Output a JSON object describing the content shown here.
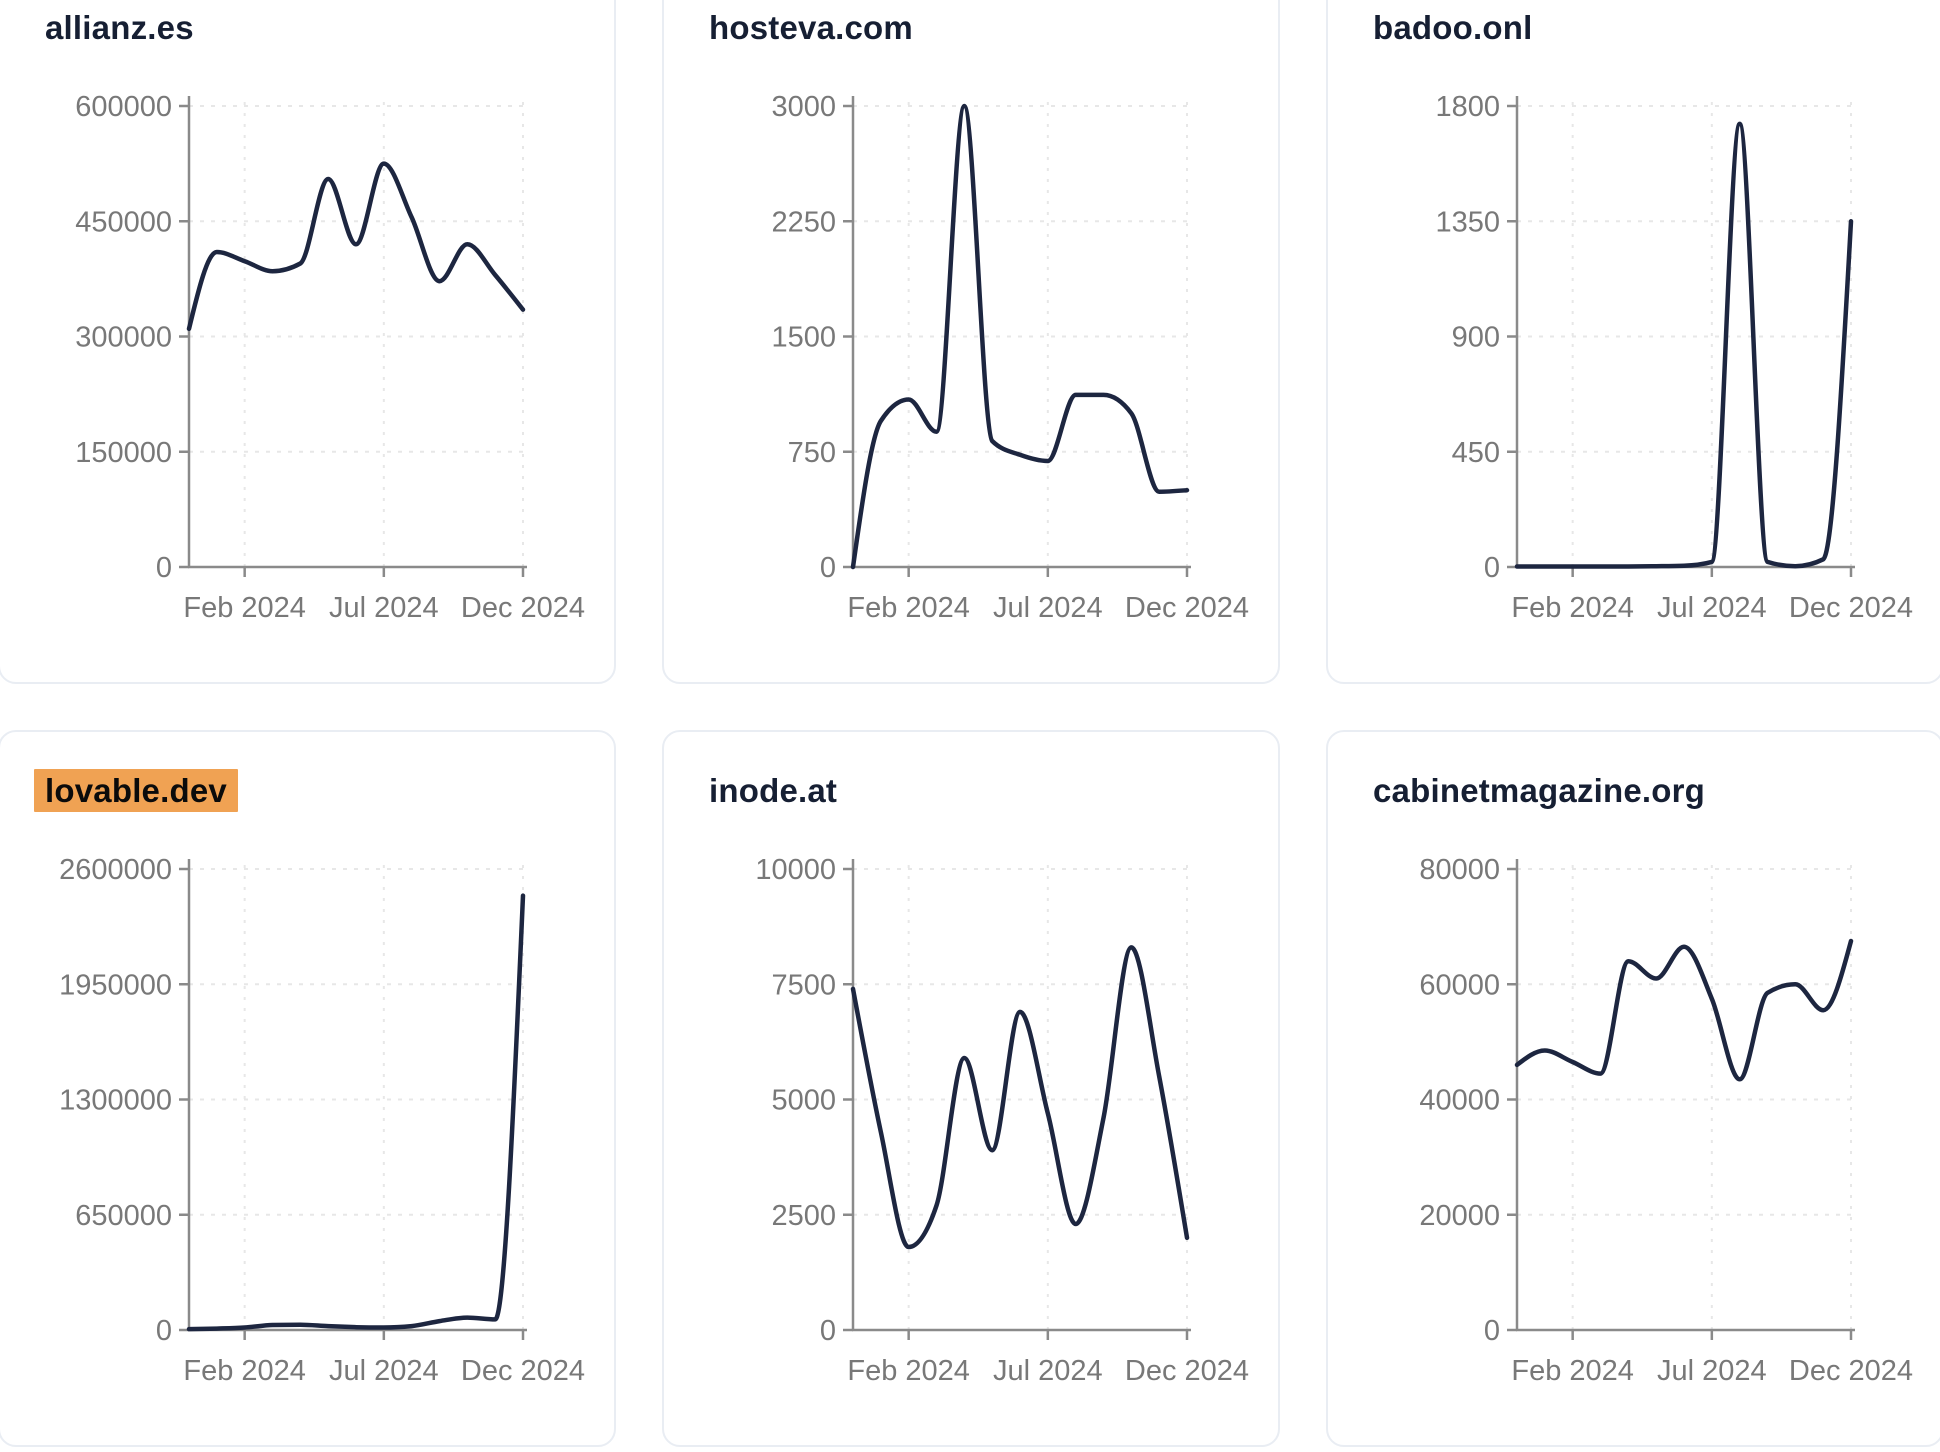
{
  "style": {
    "line_color": "#1d2640",
    "title_color": "#161f33",
    "highlight_color": "#f0a253",
    "axis_color": "#8a8a8a",
    "grid_color": "#e7e7e7",
    "tick_label_color": "#787878",
    "card_border_color": "#e9edf3",
    "background": "#ffffff"
  },
  "x_axis": {
    "tick_labels": [
      "Feb 2024",
      "Jul 2024",
      "Dec 2024"
    ]
  },
  "chart_data": [
    {
      "type": "line",
      "title": "allianz.es",
      "title_highlighted": false,
      "x": [
        "Dec 2023",
        "Jan 2024",
        "Feb 2024",
        "Mar 2024",
        "Apr 2024",
        "May 2024",
        "Jun 2024",
        "Jul 2024",
        "Aug 2024",
        "Sep 2024",
        "Oct 2024",
        "Nov 2024",
        "Dec 2024"
      ],
      "values": [
        310000,
        410000,
        398000,
        385000,
        395000,
        505000,
        420000,
        525000,
        455000,
        372000,
        420000,
        380000,
        335000
      ],
      "ylim": [
        0,
        600000
      ],
      "yticks": [
        0,
        150000,
        300000,
        450000,
        600000
      ],
      "y_tick_labels": [
        "0",
        "150000",
        "300000",
        "450000",
        "600000"
      ],
      "x_tick_labels": [
        "Feb 2024",
        "Jul 2024",
        "Dec 2024"
      ],
      "grid": true,
      "legend": "none"
    },
    {
      "type": "line",
      "title": "hosteva.com",
      "title_highlighted": false,
      "x": [
        "Dec 2023",
        "Jan 2024",
        "Feb 2024",
        "Mar 2024",
        "Apr 2024",
        "May 2024",
        "Jun 2024",
        "Jul 2024",
        "Aug 2024",
        "Sep 2024",
        "Oct 2024",
        "Nov 2024",
        "Dec 2024"
      ],
      "values": [
        0,
        950,
        1090,
        880,
        3000,
        820,
        730,
        690,
        1120,
        1120,
        1000,
        490,
        500
      ],
      "ylim": [
        0,
        3000
      ],
      "yticks": [
        0,
        750,
        1500,
        2250,
        3000
      ],
      "y_tick_labels": [
        "0",
        "750",
        "1500",
        "2250",
        "3000"
      ],
      "x_tick_labels": [
        "Feb 2024",
        "Jul 2024",
        "Dec 2024"
      ],
      "grid": true,
      "legend": "none"
    },
    {
      "type": "line",
      "title": "badoo.onl",
      "title_highlighted": false,
      "x": [
        "Dec 2023",
        "Jan 2024",
        "Feb 2024",
        "Mar 2024",
        "Apr 2024",
        "May 2024",
        "Jun 2024",
        "Jul 2024",
        "Aug 2024",
        "Sep 2024",
        "Oct 2024",
        "Nov 2024",
        "Dec 2024"
      ],
      "values": [
        2,
        2,
        2,
        2,
        2,
        3,
        5,
        20,
        1730,
        20,
        3,
        30,
        1350
      ],
      "ylim": [
        0,
        1800
      ],
      "yticks": [
        0,
        450,
        900,
        1350,
        1800
      ],
      "y_tick_labels": [
        "0",
        "450",
        "900",
        "1350",
        "1800"
      ],
      "x_tick_labels": [
        "Feb 2024",
        "Jul 2024",
        "Dec 2024"
      ],
      "grid": true,
      "legend": "none"
    },
    {
      "type": "line",
      "title": "lovable.dev",
      "title_highlighted": true,
      "x": [
        "Dec 2023",
        "Jan 2024",
        "Feb 2024",
        "Mar 2024",
        "Apr 2024",
        "May 2024",
        "Jun 2024",
        "Jul 2024",
        "Aug 2024",
        "Sep 2024",
        "Oct 2024",
        "Nov 2024",
        "Dec 2024"
      ],
      "values": [
        5000,
        8000,
        14000,
        28000,
        30000,
        22000,
        16000,
        14000,
        22000,
        50000,
        70000,
        60000,
        2450000
      ],
      "ylim": [
        0,
        2600000
      ],
      "yticks": [
        0,
        650000,
        1300000,
        1950000,
        2600000
      ],
      "y_tick_labels": [
        "0",
        "650000",
        "1300000",
        "1950000",
        "2600000"
      ],
      "x_tick_labels": [
        "Feb 2024",
        "Jul 2024",
        "Dec 2024"
      ],
      "grid": true,
      "legend": "none"
    },
    {
      "type": "line",
      "title": "inode.at",
      "title_highlighted": false,
      "x": [
        "Dec 2023",
        "Jan 2024",
        "Feb 2024",
        "Mar 2024",
        "Apr 2024",
        "May 2024",
        "Jun 2024",
        "Jul 2024",
        "Aug 2024",
        "Sep 2024",
        "Oct 2024",
        "Nov 2024",
        "Dec 2024"
      ],
      "values": [
        7400,
        4300,
        1800,
        2700,
        5900,
        3900,
        6900,
        4700,
        2300,
        4600,
        8300,
        5500,
        2000
      ],
      "ylim": [
        0,
        10000
      ],
      "yticks": [
        0,
        2500,
        5000,
        7500,
        10000
      ],
      "y_tick_labels": [
        "0",
        "2500",
        "5000",
        "7500",
        "10000"
      ],
      "x_tick_labels": [
        "Feb 2024",
        "Jul 2024",
        "Dec 2024"
      ],
      "grid": true,
      "legend": "none"
    },
    {
      "type": "line",
      "title": "cabinetmagazine.org",
      "title_highlighted": false,
      "x": [
        "Dec 2023",
        "Jan 2024",
        "Feb 2024",
        "Mar 2024",
        "Apr 2024",
        "May 2024",
        "Jun 2024",
        "Jul 2024",
        "Aug 2024",
        "Sep 2024",
        "Oct 2024",
        "Nov 2024",
        "Dec 2024"
      ],
      "values": [
        46000,
        48500,
        46500,
        44500,
        64000,
        61000,
        66500,
        57500,
        43500,
        58500,
        60000,
        55500,
        67500
      ],
      "ylim": [
        0,
        80000
      ],
      "yticks": [
        0,
        20000,
        40000,
        60000,
        80000
      ],
      "y_tick_labels": [
        "0",
        "20000",
        "40000",
        "60000",
        "80000"
      ],
      "x_tick_labels": [
        "Feb 2024",
        "Jul 2024",
        "Dec 2024"
      ],
      "grid": true,
      "legend": "none"
    }
  ]
}
